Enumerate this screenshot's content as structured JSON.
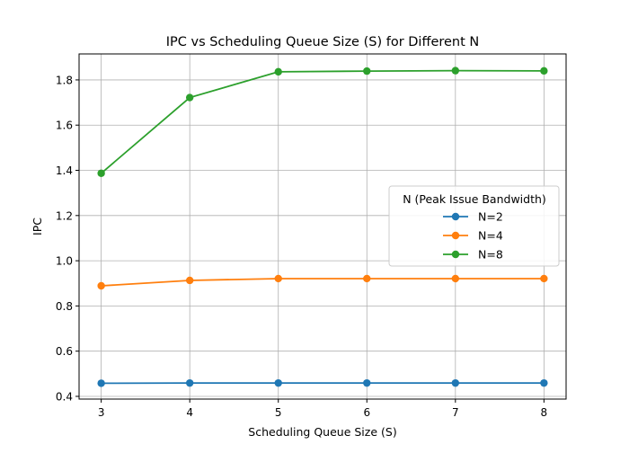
{
  "chart_data": {
    "type": "line",
    "title": "IPC vs Scheduling Queue Size (S) for Different N",
    "xlabel": "Scheduling Queue Size (S)",
    "ylabel": "IPC",
    "x": [
      3,
      4,
      5,
      6,
      7,
      8
    ],
    "xticks": [
      "3",
      "4",
      "5",
      "6",
      "7",
      "8"
    ],
    "yticks": [
      "0.4",
      "0.6",
      "0.8",
      "1.0",
      "1.2",
      "1.4",
      "1.6",
      "1.8"
    ],
    "xlim": [
      2.75,
      8.25
    ],
    "ylim": [
      0.388,
      1.915
    ],
    "grid": true,
    "legend": {
      "title": "N (Peak Issue Bandwidth)",
      "placement": "center-right"
    },
    "series": [
      {
        "name": "N=2",
        "color": "#1f77b4",
        "values": [
          0.458,
          0.459,
          0.459,
          0.459,
          0.459,
          0.459
        ]
      },
      {
        "name": "N=4",
        "color": "#ff7f0e",
        "values": [
          0.889,
          0.913,
          0.921,
          0.921,
          0.921,
          0.921
        ]
      },
      {
        "name": "N=8",
        "color": "#2ca02c",
        "values": [
          1.387,
          1.722,
          1.836,
          1.839,
          1.841,
          1.84
        ]
      }
    ]
  }
}
